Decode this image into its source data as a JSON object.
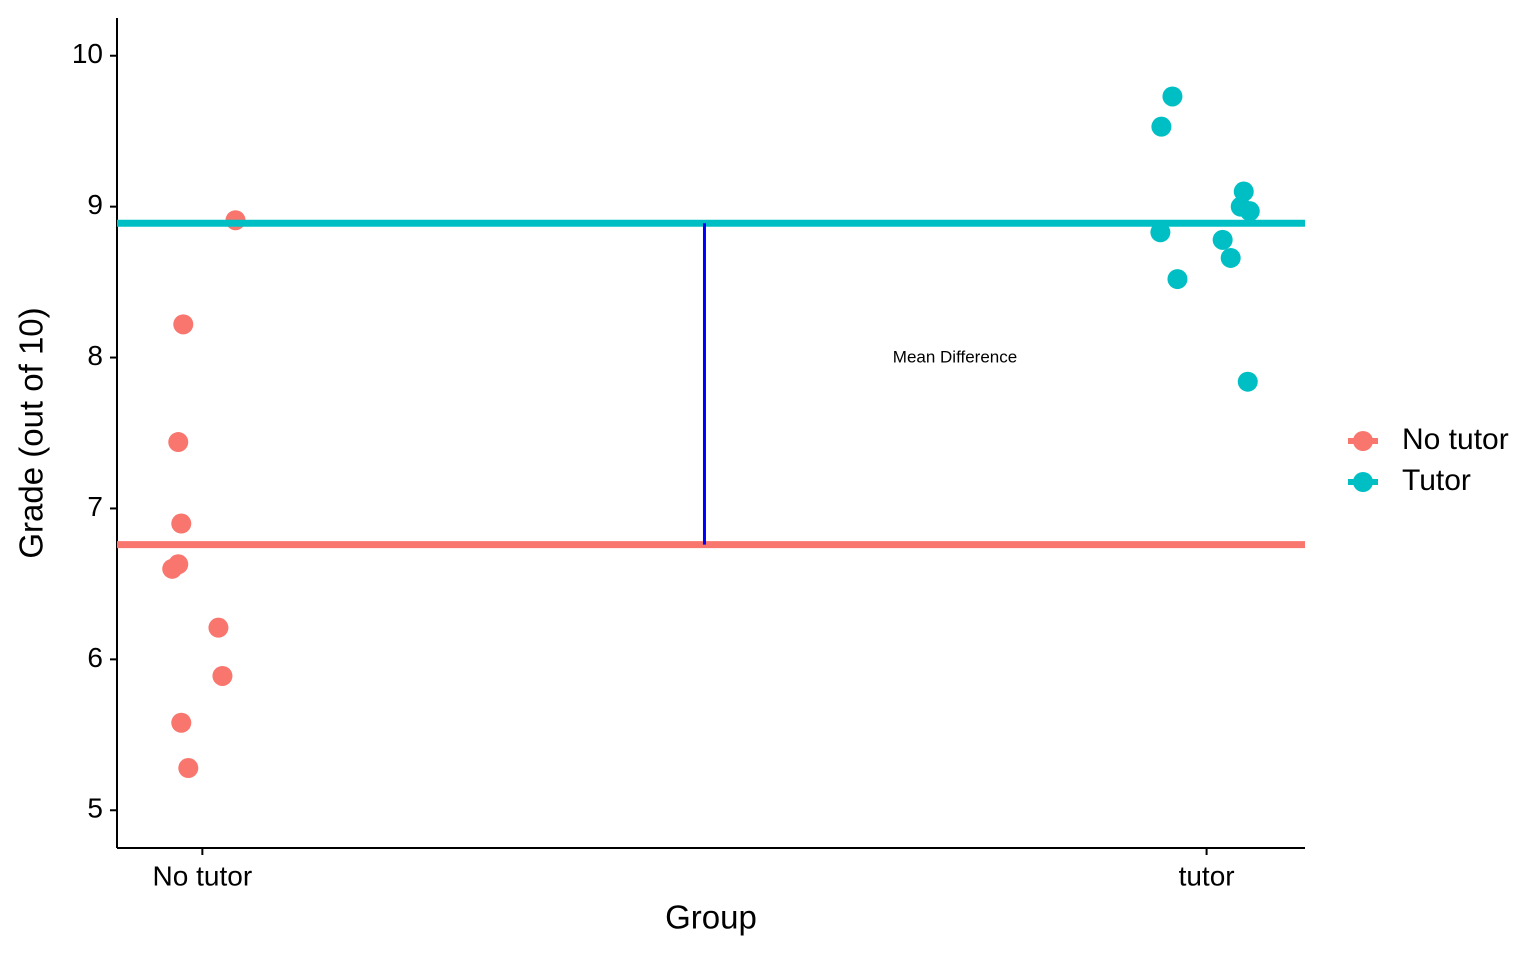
{
  "chart_data": {
    "type": "strip",
    "xlabel": "Group",
    "ylabel": "Grade (out of 10)",
    "annotation": "Mean Difference",
    "xlim": [
      0.915,
      2.098
    ],
    "xticks": [
      {
        "value": 1,
        "label": "No tutor"
      },
      {
        "value": 2,
        "label": "tutor"
      }
    ],
    "ylim": [
      4.75,
      10.25
    ],
    "yticks": [
      5,
      6,
      7,
      8,
      9,
      10
    ],
    "grid": false,
    "series": [
      {
        "name": "No tutor",
        "color": "#f8766d",
        "mean": 6.76,
        "x": [
          1.033,
          0.981,
          0.976,
          0.979,
          0.976,
          0.97,
          1.016,
          1.02,
          0.979,
          0.986
        ],
        "values": [
          8.91,
          8.22,
          7.44,
          6.9,
          6.63,
          6.6,
          6.21,
          5.89,
          5.58,
          5.28
        ]
      },
      {
        "name": "Tutor",
        "color": "#00bfc4",
        "mean": 8.89,
        "x": [
          1.966,
          1.955,
          2.037,
          2.034,
          2.043,
          1.954,
          2.016,
          2.024,
          1.971,
          2.041
        ],
        "values": [
          9.73,
          9.53,
          9.1,
          9.0,
          8.97,
          8.83,
          8.78,
          8.66,
          8.52,
          7.84
        ]
      }
    ],
    "mean_difference_color": "#0000ff"
  }
}
